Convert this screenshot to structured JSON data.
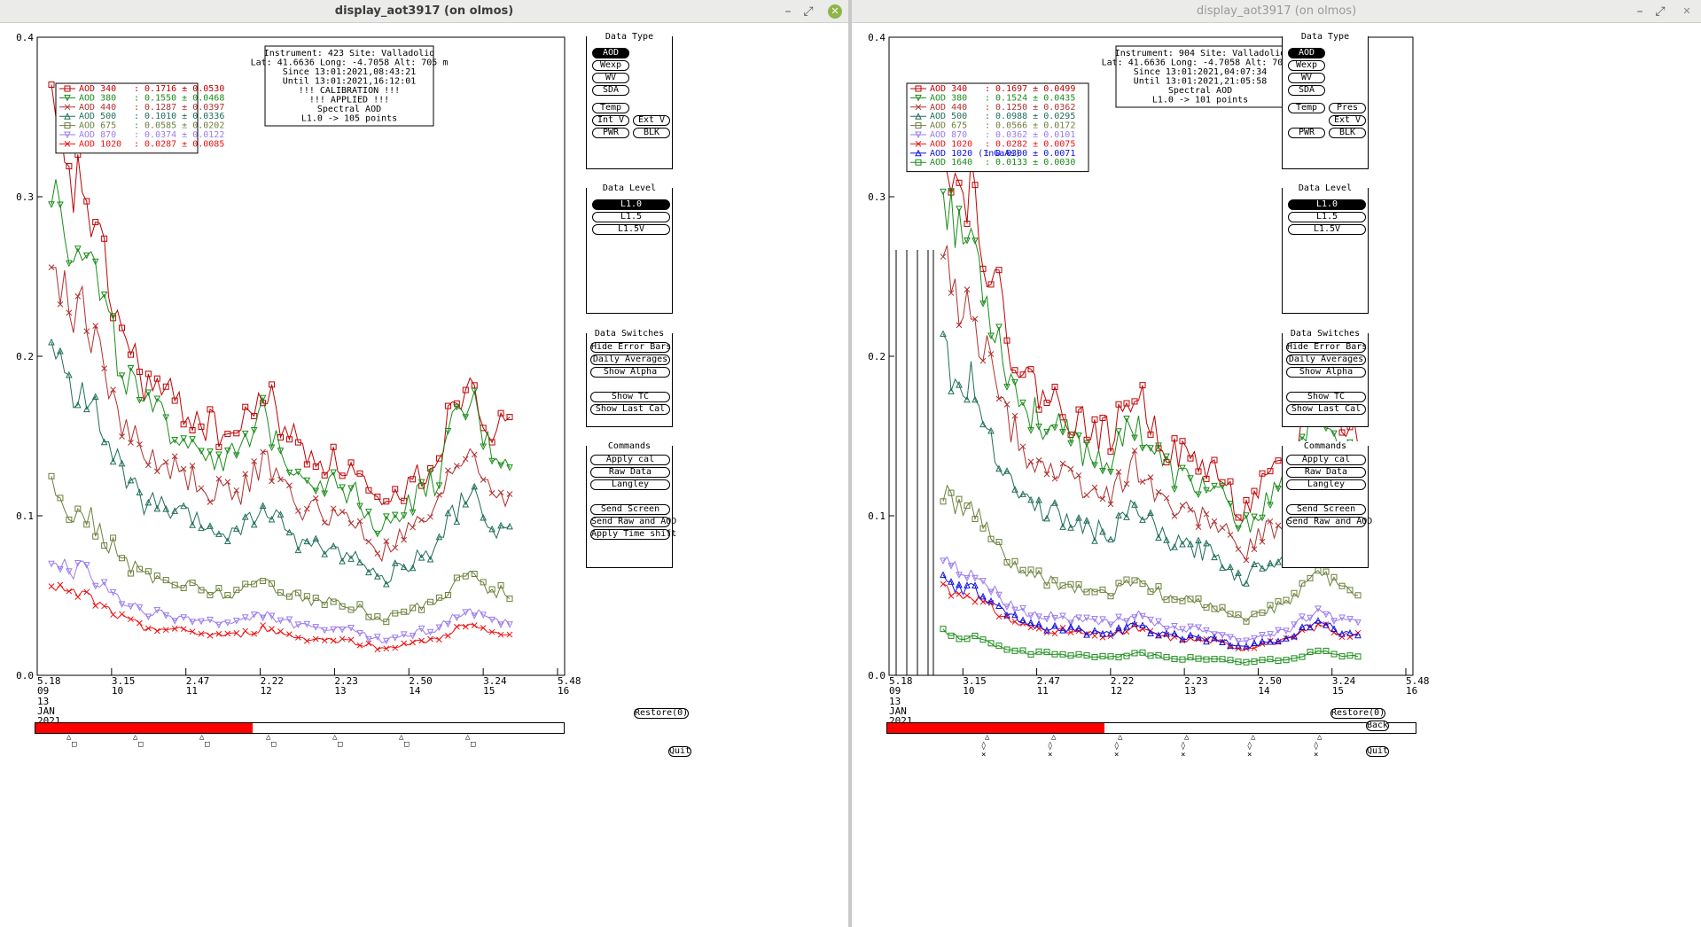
{
  "windows": [
    {
      "title": "display_aot3917 (on olmos)",
      "info": [
        "Instrument: 423 Site: Valladolid",
        "Lat: 41.6636 Long: -4.7058 Alt: 705 m",
        "Since 13:01:2021,08:43:21",
        "Until 13:01:2021,16:12:01",
        "!!! CALIBRATION !!!",
        "!!!   APPLIED   !!!",
        "Spectral AOD",
        "L1.0 -> 105 points"
      ],
      "legend": [
        {
          "label": "AOD 340",
          "value": ": 0.1716 ± 0.0530",
          "color": "#c00000",
          "marker": "square"
        },
        {
          "label": "AOD 380",
          "value": ": 0.1550 ± 0.0468",
          "color": "#1a8c1a",
          "marker": "tri-down"
        },
        {
          "label": "AOD 440",
          "value": ": 0.1287 ± 0.0397",
          "color": "#b03030",
          "marker": "x"
        },
        {
          "label": "AOD 500",
          "value": ": 0.1010 ± 0.0336",
          "color": "#1f6e5a",
          "marker": "tri-up"
        },
        {
          "label": "AOD 675",
          "value": ": 0.0585 ± 0.0202",
          "color": "#6b7f3a",
          "marker": "square"
        },
        {
          "label": "AOD 870",
          "value": ": 0.0374 ± 0.0122",
          "color": "#9b7bee",
          "marker": "tri-down"
        },
        {
          "label": "AOD 1020",
          "value": ": 0.0287 ± 0.0085",
          "color": "#ee1111",
          "marker": "x"
        }
      ],
      "series_sel": [
        [
          0,
          0.155
        ],
        [
          1,
          0.14
        ],
        [
          2,
          0.113
        ],
        [
          3,
          0.088
        ],
        [
          4,
          0.052
        ],
        [
          5,
          0.033
        ],
        [
          6,
          0.026
        ]
      ],
      "vlines": []
    },
    {
      "title": "display_aot3917 (on olmos)",
      "info": [
        "Instrument: 904 Site: Valladolid",
        "Lat: 41.6636 Long: -4.7058 Alt: 705 m",
        "Since 13:01:2021,04:07:34",
        "Until 13:01:2021,21:05:58",
        "Spectral AOD",
        "L1.0 -> 101 points"
      ],
      "legend": [
        {
          "label": "AOD 340",
          "value": ": 0.1697 ± 0.0499",
          "color": "#c00000",
          "marker": "square"
        },
        {
          "label": "AOD 380",
          "value": ": 0.1524 ± 0.0435",
          "color": "#1a8c1a",
          "marker": "tri-down"
        },
        {
          "label": "AOD 440",
          "value": ": 0.1250 ± 0.0362",
          "color": "#b03030",
          "marker": "x"
        },
        {
          "label": "AOD 500",
          "value": ": 0.0988 ± 0.0295",
          "color": "#1f6e5a",
          "marker": "tri-up"
        },
        {
          "label": "AOD 675",
          "value": ": 0.0566 ± 0.0172",
          "color": "#6b7f3a",
          "marker": "square"
        },
        {
          "label": "AOD 870",
          "value": ": 0.0362 ± 0.0101",
          "color": "#9b7bee",
          "marker": "tri-down"
        },
        {
          "label": "AOD 1020",
          "value": ": 0.0282 ± 0.0075",
          "color": "#ee1111",
          "marker": "x"
        },
        {
          "label": "AOD 1020 (InGaAs)",
          "value": ": 0.0300 ± 0.0071",
          "color": "#1010dd",
          "marker": "tri-up"
        },
        {
          "label": "AOD 1640",
          "value": ": 0.0133 ± 0.0030",
          "color": "#1a8c1a",
          "marker": "square"
        }
      ],
      "vlines": [
        true
      ]
    }
  ],
  "axes": {
    "y_ticks": [
      "0.4",
      "0.3",
      "0.2",
      "0.1",
      "0.0"
    ],
    "x_ticks": [
      {
        "time": "5.18",
        "day": "09"
      },
      {
        "time": "3.15",
        "day": "10"
      },
      {
        "time": "2.47",
        "day": "11"
      },
      {
        "time": "2.22",
        "day": "12"
      },
      {
        "time": "2.23",
        "day": "13"
      },
      {
        "time": "2.50",
        "day": "14"
      },
      {
        "time": "3.24",
        "day": "15"
      },
      {
        "time": "5.48",
        "day": "16"
      }
    ],
    "date_lines": [
      "13",
      "JAN",
      "2021"
    ]
  },
  "panels": {
    "data_type": {
      "title": "Data Type",
      "buttons_left": [
        "AOD",
        "Wexp",
        "WV",
        "SDA",
        "Temp",
        "Int V",
        "PWR"
      ],
      "buttons_right": [
        "Ext V",
        "BLK"
      ],
      "selected": "AOD"
    },
    "data_type_right": {
      "buttons_left": [
        "AOD",
        "Wexp",
        "WV",
        "SDA",
        "Temp",
        "PWR"
      ],
      "buttons_right": [
        "Pres",
        "Ext V",
        "BLK"
      ]
    },
    "data_level": {
      "title": "Data Level",
      "buttons": [
        "L1.0",
        "L1.5",
        "L1.5V"
      ],
      "selected": "L1.0"
    },
    "data_switches": {
      "title": "Data Switches",
      "buttons": [
        "Hide Error Bars",
        "Daily Averages",
        "Show Alpha",
        "Show TC",
        "Show Last Cal"
      ]
    },
    "commands": {
      "title": "Commands",
      "buttons": [
        "Apply cal",
        "Raw Data",
        "Langley",
        "Send Screen",
        "Send Raw and AOD",
        "Apply Time shift"
      ]
    },
    "commands_right": {
      "buttons": [
        "Apply cal",
        "Raw Data",
        "Langley",
        "Send Screen",
        "Send Raw and AOD"
      ]
    }
  },
  "controls": {
    "restore": "Restore(0)",
    "quit": "Quit",
    "back": "Back"
  },
  "colors": {
    "progress": "#ff0000"
  }
}
